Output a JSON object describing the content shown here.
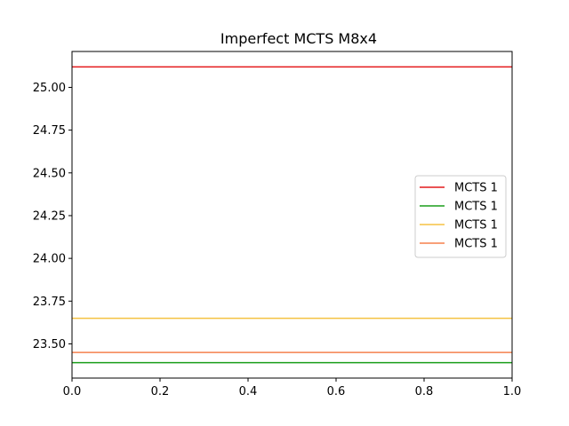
{
  "chart_data": {
    "type": "line",
    "title": "Imperfect MCTS M8x4",
    "xlabel": "",
    "ylabel": "",
    "xlim": [
      0.0,
      1.0
    ],
    "ylim": [
      23.3,
      25.21
    ],
    "x_ticks": [
      0.0,
      0.2,
      0.4,
      0.6,
      0.8,
      1.0
    ],
    "x_tick_labels": [
      "0.0",
      "0.2",
      "0.4",
      "0.6",
      "0.8",
      "1.0"
    ],
    "y_ticks": [
      23.5,
      23.75,
      24.0,
      24.25,
      24.5,
      24.75,
      25.0
    ],
    "y_tick_labels": [
      "23.50",
      "23.75",
      "24.00",
      "24.25",
      "24.50",
      "24.75",
      "25.00"
    ],
    "grid": false,
    "legend_position": "center-right",
    "series": [
      {
        "name": "MCTS 1",
        "color": "#e41a1c",
        "x": [
          0.0,
          1.0
        ],
        "y": [
          25.12,
          25.12
        ]
      },
      {
        "name": "MCTS 1",
        "color": "#1a9e1a",
        "x": [
          0.0,
          1.0
        ],
        "y": [
          23.39,
          23.39
        ]
      },
      {
        "name": "MCTS 1",
        "color": "#f5c242",
        "x": [
          0.0,
          1.0
        ],
        "y": [
          23.65,
          23.65
        ]
      },
      {
        "name": "MCTS 1",
        "color": "#f5804d",
        "x": [
          0.0,
          1.0
        ],
        "y": [
          23.45,
          23.45
        ]
      }
    ]
  }
}
